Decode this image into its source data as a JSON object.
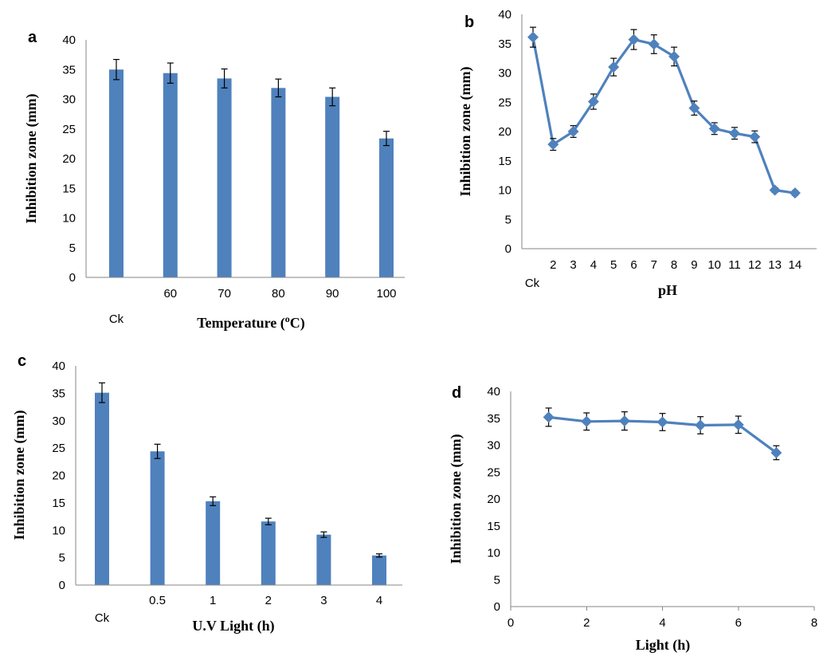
{
  "colors": {
    "series": "#4f81bd",
    "axis": "#868686",
    "error_bar": "#000000"
  },
  "chart_data": [
    {
      "panel": "a",
      "type": "bar",
      "categories": [
        "Ck",
        "60",
        "70",
        "80",
        "90",
        "100"
      ],
      "values": [
        35.0,
        34.4,
        33.5,
        31.9,
        30.4,
        23.4
      ],
      "errors": [
        1.7,
        1.7,
        1.6,
        1.5,
        1.5,
        1.2
      ],
      "xlabel": "Temperature (°C)",
      "xlabel_main": "Temperature (",
      "xlabel_sup": "o",
      "xlabel_end": "C)",
      "ylabel": "Inhibition zone (mm)",
      "ylim": [
        0,
        40
      ],
      "yticks": [
        "0",
        "5",
        "10",
        "15",
        "20",
        "25",
        "30",
        "35",
        "40"
      ],
      "grid": false,
      "legend": "none"
    },
    {
      "panel": "b",
      "type": "line",
      "categories": [
        "Ck",
        "2",
        "3",
        "4",
        "5",
        "6",
        "7",
        "8",
        "9",
        "10",
        "11",
        "12",
        "13",
        "14"
      ],
      "values": [
        36.1,
        17.8,
        20.0,
        25.1,
        31.0,
        35.7,
        34.9,
        32.8,
        24.0,
        20.5,
        19.7,
        19.1,
        10.0,
        9.5
      ],
      "errors": [
        1.7,
        1.0,
        1.0,
        1.3,
        1.5,
        1.7,
        1.6,
        1.6,
        1.2,
        1.0,
        1.0,
        1.0,
        0.4,
        0.4
      ],
      "xlabel": "pH",
      "ylabel": "Inhibition zone (mm)",
      "ylim": [
        0,
        40
      ],
      "yticks": [
        "0",
        "5",
        "10",
        "15",
        "20",
        "25",
        "30",
        "35",
        "40"
      ],
      "marker": "diamond",
      "grid": false,
      "legend": "none"
    },
    {
      "panel": "c",
      "type": "bar",
      "categories": [
        "Ck",
        "0.5",
        "1",
        "2",
        "3",
        "4"
      ],
      "values": [
        35.1,
        24.4,
        15.3,
        11.6,
        9.2,
        5.4
      ],
      "errors": [
        1.8,
        1.3,
        0.8,
        0.6,
        0.5,
        0.3
      ],
      "xlabel": "U.V Light (h)",
      "ylabel": "Inhibition zone (mm)",
      "ylim": [
        0,
        40
      ],
      "yticks": [
        "0",
        "5",
        "10",
        "15",
        "20",
        "25",
        "30",
        "35",
        "40"
      ],
      "grid": false,
      "legend": "none"
    },
    {
      "panel": "d",
      "type": "scatter",
      "x": [
        1,
        2,
        3,
        4,
        5,
        6,
        7
      ],
      "values": [
        35.2,
        34.4,
        34.5,
        34.3,
        33.7,
        33.8,
        28.6
      ],
      "errors": [
        1.7,
        1.6,
        1.7,
        1.6,
        1.6,
        1.6,
        1.3
      ],
      "xlabel": "Light (h)",
      "ylabel": "Inhibition zone (mm)",
      "xlim": [
        0,
        8
      ],
      "xticks": [
        "0",
        "2",
        "4",
        "6",
        "8"
      ],
      "ylim": [
        0,
        40
      ],
      "yticks": [
        "0",
        "5",
        "10",
        "15",
        "20",
        "25",
        "30",
        "35",
        "40"
      ],
      "marker": "diamond",
      "connected": true,
      "grid": false,
      "legend": "none"
    }
  ]
}
